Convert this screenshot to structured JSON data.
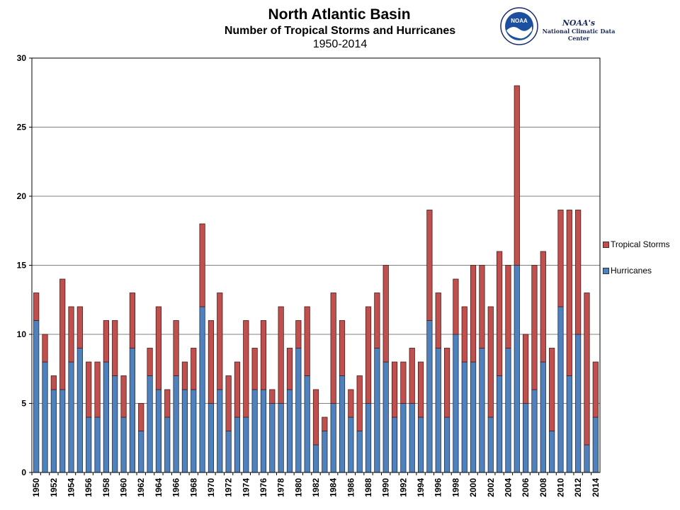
{
  "chart_data": {
    "type": "bar",
    "stacked": true,
    "title": "North Atlantic Basin",
    "subtitle": "Number of Tropical Storms and Hurricanes",
    "period": "1950-2014",
    "ylim": [
      0,
      30
    ],
    "yticks": [
      0,
      5,
      10,
      15,
      20,
      25,
      30
    ],
    "grid": true,
    "legend_position": "right",
    "categories": [
      1950,
      1951,
      1952,
      1953,
      1954,
      1955,
      1956,
      1957,
      1958,
      1959,
      1960,
      1961,
      1962,
      1963,
      1964,
      1965,
      1966,
      1967,
      1968,
      1969,
      1970,
      1971,
      1972,
      1973,
      1974,
      1975,
      1976,
      1977,
      1978,
      1979,
      1980,
      1981,
      1982,
      1983,
      1984,
      1985,
      1986,
      1987,
      1988,
      1989,
      1990,
      1991,
      1992,
      1993,
      1994,
      1995,
      1996,
      1997,
      1998,
      1999,
      2000,
      2001,
      2002,
      2003,
      2004,
      2005,
      2006,
      2007,
      2008,
      2009,
      2010,
      2011,
      2012,
      2013,
      2014
    ],
    "series": [
      {
        "name": "Hurricanes",
        "color": "#4f81bd",
        "values": [
          11,
          8,
          6,
          6,
          8,
          9,
          4,
          4,
          8,
          7,
          4,
          9,
          3,
          7,
          6,
          4,
          7,
          6,
          6,
          12,
          5,
          6,
          3,
          4,
          4,
          6,
          6,
          5,
          5,
          6,
          9,
          7,
          2,
          3,
          5,
          7,
          4,
          3,
          5,
          9,
          8,
          4,
          5,
          5,
          4,
          11,
          9,
          4,
          10,
          8,
          8,
          9,
          4,
          7,
          9,
          15,
          5,
          6,
          8,
          3,
          12,
          7,
          10,
          2,
          4
        ]
      },
      {
        "name": "Tropical Storms",
        "color": "#c0504d",
        "values": [
          2,
          2,
          1,
          8,
          4,
          3,
          4,
          4,
          3,
          4,
          3,
          4,
          2,
          2,
          6,
          2,
          4,
          2,
          3,
          6,
          6,
          7,
          4,
          4,
          7,
          3,
          5,
          1,
          7,
          3,
          2,
          5,
          4,
          1,
          8,
          4,
          2,
          4,
          7,
          4,
          7,
          4,
          3,
          4,
          4,
          8,
          4,
          5,
          4,
          4,
          7,
          6,
          8,
          9,
          6,
          13,
          5,
          9,
          8,
          6,
          7,
          12,
          9,
          11,
          4
        ]
      }
    ]
  },
  "logo": {
    "badge": "NOAA",
    "line1": "NOAA's",
    "line2": "National Climatic Data Center"
  }
}
